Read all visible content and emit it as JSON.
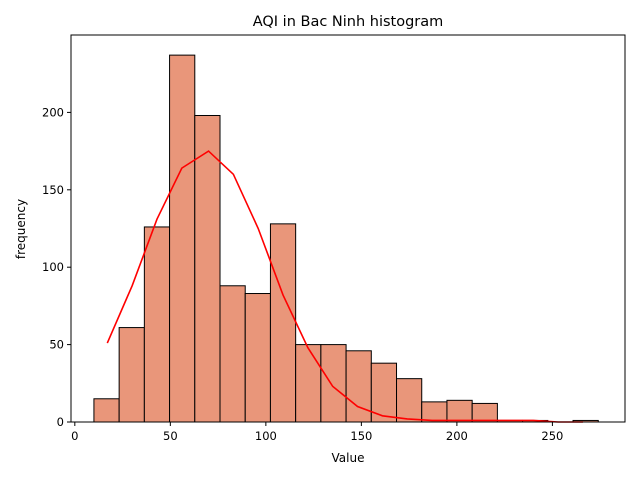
{
  "chart_data": {
    "type": "bar",
    "title": "AQI in Bac Ninh histogram",
    "xlabel": "Value",
    "ylabel": "frequency",
    "xlim": [
      -2,
      288
    ],
    "ylim": [
      0,
      250
    ],
    "xticks": [
      0,
      50,
      100,
      150,
      200,
      250
    ],
    "yticks": [
      0,
      50,
      100,
      150,
      200
    ],
    "bins": [
      {
        "x0": 10,
        "x1": 23.2,
        "count": 15
      },
      {
        "x0": 23.2,
        "x1": 36.4,
        "count": 61
      },
      {
        "x0": 36.4,
        "x1": 49.6,
        "count": 126
      },
      {
        "x0": 49.6,
        "x1": 62.8,
        "count": 237
      },
      {
        "x0": 62.8,
        "x1": 76.0,
        "count": 198
      },
      {
        "x0": 76.0,
        "x1": 89.2,
        "count": 88
      },
      {
        "x0": 89.2,
        "x1": 102.4,
        "count": 83
      },
      {
        "x0": 102.4,
        "x1": 115.6,
        "count": 128
      },
      {
        "x0": 115.6,
        "x1": 128.8,
        "count": 50
      },
      {
        "x0": 128.8,
        "x1": 142.0,
        "count": 50
      },
      {
        "x0": 142.0,
        "x1": 155.2,
        "count": 46
      },
      {
        "x0": 155.2,
        "x1": 168.4,
        "count": 38
      },
      {
        "x0": 168.4,
        "x1": 181.6,
        "count": 28
      },
      {
        "x0": 181.6,
        "x1": 194.8,
        "count": 13
      },
      {
        "x0": 194.8,
        "x1": 208.0,
        "count": 14
      },
      {
        "x0": 208.0,
        "x1": 221.2,
        "count": 12
      },
      {
        "x0": 221.2,
        "x1": 234.4,
        "count": 1
      },
      {
        "x0": 234.4,
        "x1": 247.6,
        "count": 1
      },
      {
        "x0": 247.6,
        "x1": 260.8,
        "count": 0
      },
      {
        "x0": 260.8,
        "x1": 274.0,
        "count": 1
      }
    ],
    "kde": {
      "x": [
        17,
        30,
        43,
        56,
        70,
        83,
        96,
        109,
        122,
        135,
        148,
        161,
        174,
        187,
        200,
        213,
        226,
        240,
        253,
        266
      ],
      "y": [
        51,
        88,
        131,
        164,
        175,
        160,
        125,
        82,
        48,
        23,
        10,
        4,
        2,
        1,
        1,
        1,
        1,
        1,
        0,
        0
      ]
    },
    "grid": false,
    "legend": "none",
    "colors": {
      "bar_fill": "#e9967a",
      "bar_edge": "#000000",
      "kde_line": "#ff0000"
    }
  }
}
